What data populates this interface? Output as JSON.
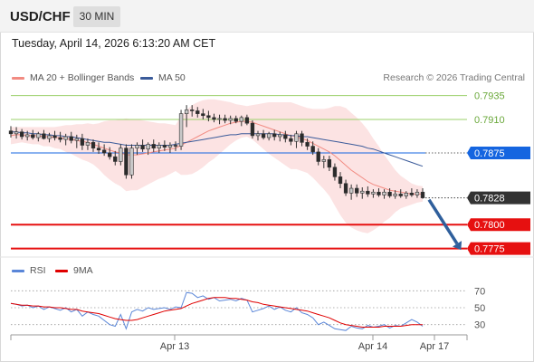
{
  "header": {
    "symbol": "USD/CHF",
    "timeframe": "30 MIN"
  },
  "datetime": "Tuesday, April 14, 2026 6:13:20 AM CET",
  "legend": {
    "ma20_label": "MA 20 + Bollinger Bands",
    "ma50_label": "MA 50",
    "rsi_label": "RSI",
    "rsi_ma_label": "9MA",
    "ma20_color": "#f28b82",
    "ma50_color": "#3b5b9a",
    "rsi_color": "#5a86d8",
    "rsi_ma_color": "#e00000"
  },
  "credit": "Research © 2026 Trading Central",
  "chart_data": [
    {
      "type": "candlestick",
      "ylim": [
        0.7768,
        0.7945
      ],
      "x_ticks": [
        "Apr 13",
        "Apr 14",
        "Apr 17"
      ],
      "levels": [
        {
          "value": 0.7935,
          "label": "0.7935",
          "kind": "target",
          "color": "#9bd06b"
        },
        {
          "value": 0.791,
          "label": "0.7910",
          "kind": "target",
          "color": "#9bd06b"
        },
        {
          "value": 0.7875,
          "label": "0.7875",
          "kind": "pivot",
          "color": "#1565e0"
        },
        {
          "value": 0.7828,
          "label": "0.7828",
          "kind": "last",
          "color": "#333333"
        },
        {
          "value": 0.78,
          "label": "0.7800",
          "kind": "support",
          "color": "#e61010"
        },
        {
          "value": 0.7775,
          "label": "0.7775",
          "kind": "support",
          "color": "#e61010"
        }
      ],
      "candles": [
        [
          0.7898,
          0.7903,
          0.7891,
          0.7895
        ],
        [
          0.7895,
          0.7902,
          0.789,
          0.7897
        ],
        [
          0.7897,
          0.79,
          0.7889,
          0.7892
        ],
        [
          0.7892,
          0.7898,
          0.7888,
          0.7894
        ],
        [
          0.7894,
          0.7899,
          0.7889,
          0.7891
        ],
        [
          0.7891,
          0.7897,
          0.7887,
          0.7895
        ],
        [
          0.7895,
          0.7899,
          0.7889,
          0.789
        ],
        [
          0.789,
          0.7896,
          0.7886,
          0.7893
        ],
        [
          0.7893,
          0.7898,
          0.7888,
          0.7891
        ],
        [
          0.7891,
          0.7897,
          0.7886,
          0.7889
        ],
        [
          0.7889,
          0.7895,
          0.7883,
          0.7892
        ],
        [
          0.7892,
          0.7897,
          0.7885,
          0.7888
        ],
        [
          0.7888,
          0.7894,
          0.788,
          0.789
        ],
        [
          0.789,
          0.7895,
          0.7878,
          0.7883
        ],
        [
          0.7883,
          0.789,
          0.7878,
          0.7886
        ],
        [
          0.7886,
          0.7889,
          0.7876,
          0.788
        ],
        [
          0.788,
          0.7886,
          0.7874,
          0.7878
        ],
        [
          0.7878,
          0.7884,
          0.7872,
          0.7875
        ],
        [
          0.7875,
          0.7881,
          0.7868,
          0.7871
        ],
        [
          0.7871,
          0.7877,
          0.7862,
          0.7866
        ],
        [
          0.7866,
          0.7884,
          0.7862,
          0.788
        ],
        [
          0.788,
          0.7884,
          0.7848,
          0.7852
        ],
        [
          0.7852,
          0.7884,
          0.7848,
          0.788
        ],
        [
          0.788,
          0.7886,
          0.7873,
          0.7883
        ],
        [
          0.7883,
          0.7889,
          0.7876,
          0.7879
        ],
        [
          0.7879,
          0.7886,
          0.7873,
          0.7884
        ],
        [
          0.7884,
          0.7889,
          0.7876,
          0.788
        ],
        [
          0.788,
          0.7886,
          0.7875,
          0.7883
        ],
        [
          0.7883,
          0.7888,
          0.7877,
          0.7881
        ],
        [
          0.7881,
          0.7886,
          0.7875,
          0.7883
        ],
        [
          0.7883,
          0.7887,
          0.7877,
          0.7882
        ],
        [
          0.7882,
          0.792,
          0.7878,
          0.7916
        ],
        [
          0.7916,
          0.7925,
          0.7902,
          0.792
        ],
        [
          0.792,
          0.7925,
          0.7913,
          0.7919
        ],
        [
          0.7919,
          0.7923,
          0.7912,
          0.7916
        ],
        [
          0.7916,
          0.7921,
          0.791,
          0.7914
        ],
        [
          0.7914,
          0.7919,
          0.7908,
          0.7912
        ],
        [
          0.7912,
          0.7916,
          0.7907,
          0.791
        ],
        [
          0.791,
          0.7915,
          0.7905,
          0.7911
        ],
        [
          0.7911,
          0.7915,
          0.7906,
          0.7909
        ],
        [
          0.7909,
          0.7914,
          0.7905,
          0.7911
        ],
        [
          0.7911,
          0.7914,
          0.7906,
          0.7908
        ],
        [
          0.7908,
          0.7914,
          0.7903,
          0.7912
        ],
        [
          0.7912,
          0.7915,
          0.7904,
          0.7906
        ],
        [
          0.7906,
          0.7909,
          0.789,
          0.7893
        ],
        [
          0.7893,
          0.7898,
          0.7888,
          0.7895
        ],
        [
          0.7895,
          0.7899,
          0.7889,
          0.7891
        ],
        [
          0.7891,
          0.7897,
          0.7888,
          0.7895
        ],
        [
          0.7895,
          0.7899,
          0.7888,
          0.7892
        ],
        [
          0.7892,
          0.7897,
          0.7887,
          0.7894
        ],
        [
          0.7894,
          0.7898,
          0.7886,
          0.789
        ],
        [
          0.789,
          0.7894,
          0.7883,
          0.7887
        ],
        [
          0.7887,
          0.7898,
          0.788,
          0.7895
        ],
        [
          0.7895,
          0.7898,
          0.7882,
          0.7886
        ],
        [
          0.7886,
          0.789,
          0.7878,
          0.7882
        ],
        [
          0.7882,
          0.7887,
          0.7873,
          0.7876
        ],
        [
          0.7876,
          0.788,
          0.7862,
          0.7866
        ],
        [
          0.7866,
          0.7872,
          0.7859,
          0.7868
        ],
        [
          0.7868,
          0.7872,
          0.7856,
          0.786
        ],
        [
          0.786,
          0.7864,
          0.7846,
          0.785
        ],
        [
          0.785,
          0.7855,
          0.7838,
          0.7843
        ],
        [
          0.7843,
          0.7847,
          0.783,
          0.7833
        ],
        [
          0.7833,
          0.7842,
          0.7826,
          0.7838
        ],
        [
          0.7838,
          0.7842,
          0.7829,
          0.7833
        ],
        [
          0.7833,
          0.7839,
          0.7827,
          0.7835
        ],
        [
          0.7835,
          0.784,
          0.7829,
          0.7832
        ],
        [
          0.7832,
          0.7837,
          0.7828,
          0.7834
        ],
        [
          0.7834,
          0.7838,
          0.7829,
          0.7831
        ],
        [
          0.7831,
          0.7837,
          0.7827,
          0.7834
        ],
        [
          0.7834,
          0.7838,
          0.7828,
          0.783
        ],
        [
          0.783,
          0.7836,
          0.7827,
          0.7832
        ],
        [
          0.7832,
          0.7837,
          0.7828,
          0.783
        ],
        [
          0.783,
          0.7835,
          0.7827,
          0.7833
        ],
        [
          0.7833,
          0.7838,
          0.7829,
          0.7831
        ],
        [
          0.7831,
          0.7837,
          0.7828,
          0.7834
        ],
        [
          0.7834,
          0.7838,
          0.7827,
          0.7828
        ]
      ],
      "ma20": [
        0.7893,
        0.7894,
        0.7894,
        0.7893,
        0.7893,
        0.7893,
        0.7892,
        0.7892,
        0.7891,
        0.7891,
        0.789,
        0.7889,
        0.7888,
        0.7887,
        0.7886,
        0.7884,
        0.7882,
        0.788,
        0.7878,
        0.7876,
        0.7875,
        0.7873,
        0.7873,
        0.7873,
        0.7874,
        0.7875,
        0.7876,
        0.7877,
        0.7878,
        0.7879,
        0.788,
        0.7883,
        0.7886,
        0.7889,
        0.7892,
        0.7895,
        0.7898,
        0.79,
        0.7902,
        0.7904,
        0.7906,
        0.7907,
        0.7908,
        0.7908,
        0.7907,
        0.7905,
        0.7903,
        0.7901,
        0.7899,
        0.7897,
        0.7895,
        0.7893,
        0.7892,
        0.789,
        0.7888,
        0.7885,
        0.7882,
        0.7879,
        0.7876,
        0.7872,
        0.7867,
        0.7862,
        0.7857,
        0.7853,
        0.7849,
        0.7845,
        0.7842,
        0.784,
        0.7838,
        0.7836,
        0.7835,
        0.7834,
        0.7833,
        0.7832,
        0.7832,
        0.7832
      ],
      "bb_upper": [
        0.7902,
        0.7902,
        0.7902,
        0.7902,
        0.7902,
        0.7902,
        0.7902,
        0.7902,
        0.7902,
        0.7903,
        0.7904,
        0.7904,
        0.7905,
        0.7905,
        0.7906,
        0.7905,
        0.7906,
        0.7908,
        0.7909,
        0.7909,
        0.791,
        0.7911,
        0.791,
        0.791,
        0.7909,
        0.7908,
        0.7907,
        0.7906,
        0.7906,
        0.7905,
        0.7904,
        0.7914,
        0.792,
        0.7925,
        0.7928,
        0.793,
        0.7931,
        0.7931,
        0.793,
        0.7929,
        0.7928,
        0.7926,
        0.7925,
        0.7924,
        0.7925,
        0.7926,
        0.7927,
        0.7928,
        0.7928,
        0.7928,
        0.7928,
        0.7928,
        0.7926,
        0.7924,
        0.7922,
        0.7921,
        0.7921,
        0.7921,
        0.7922,
        0.7924,
        0.7924,
        0.7922,
        0.7917,
        0.7912,
        0.7906,
        0.7899,
        0.789,
        0.7882,
        0.7873,
        0.7865,
        0.7857,
        0.7851,
        0.7847,
        0.7843,
        0.7841,
        0.784
      ],
      "bb_lower": [
        0.7884,
        0.7885,
        0.7886,
        0.7885,
        0.7884,
        0.7884,
        0.7882,
        0.7882,
        0.788,
        0.7879,
        0.7876,
        0.7874,
        0.7871,
        0.7868,
        0.7866,
        0.7863,
        0.7858,
        0.7852,
        0.7847,
        0.7843,
        0.784,
        0.7835,
        0.7836,
        0.7836,
        0.7839,
        0.7842,
        0.7845,
        0.7848,
        0.785,
        0.7853,
        0.7856,
        0.7852,
        0.7852,
        0.7853,
        0.7856,
        0.786,
        0.7865,
        0.7869,
        0.7874,
        0.7879,
        0.7884,
        0.7888,
        0.7891,
        0.7892,
        0.7889,
        0.7884,
        0.7879,
        0.7874,
        0.787,
        0.7866,
        0.7862,
        0.7858,
        0.7858,
        0.7856,
        0.7854,
        0.7849,
        0.7843,
        0.7837,
        0.783,
        0.782,
        0.781,
        0.7802,
        0.7797,
        0.7794,
        0.7792,
        0.7791,
        0.7794,
        0.7798,
        0.7803,
        0.7807,
        0.7813,
        0.7817,
        0.7819,
        0.7821,
        0.7823,
        0.7824
      ],
      "ma50": [
        0.7897,
        0.7897,
        0.7896,
        0.7896,
        0.7895,
        0.7895,
        0.7894,
        0.7894,
        0.7893,
        0.7893,
        0.7892,
        0.7892,
        0.7891,
        0.789,
        0.7889,
        0.7888,
        0.7887,
        0.7886,
        0.7886,
        0.7885,
        0.7884,
        0.7883,
        0.7883,
        0.7883,
        0.7883,
        0.7883,
        0.7883,
        0.7883,
        0.7883,
        0.7883,
        0.7884,
        0.7885,
        0.7886,
        0.7887,
        0.7888,
        0.7889,
        0.789,
        0.7891,
        0.7892,
        0.7893,
        0.7894,
        0.7894,
        0.7895,
        0.7895,
        0.7895,
        0.7895,
        0.7895,
        0.7895,
        0.7895,
        0.7894,
        0.7894,
        0.7893,
        0.7893,
        0.7892,
        0.7892,
        0.7891,
        0.789,
        0.7889,
        0.7888,
        0.7887,
        0.7886,
        0.7885,
        0.7884,
        0.7883,
        0.7882,
        0.788,
        0.7879,
        0.7877,
        0.7875,
        0.7873,
        0.7871,
        0.7869,
        0.7867,
        0.7865,
        0.7863,
        0.7861
      ]
    },
    {
      "type": "line",
      "name": "RSI",
      "ylim": [
        20,
        80
      ],
      "y_ticks": [
        70,
        50,
        30
      ],
      "rsi": [
        55,
        54,
        52,
        53,
        50,
        52,
        48,
        51,
        49,
        47,
        50,
        45,
        48,
        40,
        45,
        42,
        40,
        35,
        30,
        28,
        42,
        25,
        45,
        48,
        46,
        50,
        48,
        49,
        50,
        48,
        51,
        50,
        68,
        67,
        62,
        64,
        60,
        62,
        58,
        59,
        60,
        58,
        61,
        59,
        45,
        47,
        49,
        52,
        48,
        51,
        47,
        45,
        50,
        44,
        42,
        38,
        30,
        33,
        29,
        25,
        24,
        23,
        28,
        26,
        25,
        29,
        27,
        28,
        30,
        26,
        29,
        28,
        32,
        36,
        33,
        28
      ],
      "rsi_ma": [
        55,
        54,
        53,
        53,
        52,
        52,
        51,
        51,
        50,
        50,
        49,
        48,
        48,
        46,
        45,
        44,
        43,
        41,
        39,
        37,
        36,
        35,
        35,
        36,
        38,
        40,
        42,
        44,
        46,
        47,
        48,
        49,
        52,
        55,
        57,
        59,
        61,
        62,
        62,
        62,
        61,
        61,
        60,
        59,
        57,
        56,
        54,
        53,
        52,
        51,
        50,
        49,
        48,
        47,
        46,
        44,
        42,
        40,
        38,
        35,
        32,
        30,
        29,
        28,
        27,
        27,
        27,
        27,
        28,
        28,
        28,
        28,
        29,
        30,
        30,
        30
      ]
    }
  ]
}
